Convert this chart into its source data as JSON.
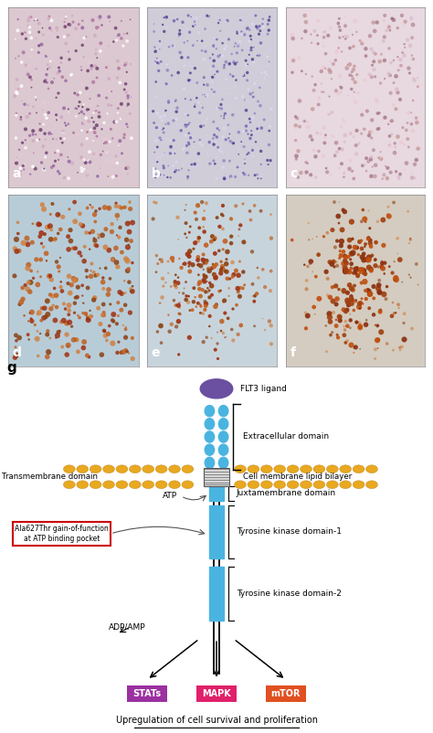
{
  "panel_labels": [
    "a",
    "b",
    "c",
    "d",
    "e",
    "f",
    "g"
  ],
  "fig_width": 4.74,
  "fig_height": 8.02,
  "bg_color": "#ffffff",
  "flt3_ligand_color": "#6b4fa0",
  "receptor_body_color": "#4ab4e0",
  "membrane_bead_color": "#e8a820",
  "stats_color": "#9b30a0",
  "mapk_color": "#e0206a",
  "mtor_color": "#e05020",
  "box_outline_color": "#cc0000",
  "label_g": "g",
  "flt3_ligand_text": "FLT3 ligand",
  "extracellular_text": "Extracellular domain",
  "transmembrane_text": "Transmembrane domain",
  "cell_membrane_text": "Cell membrane lipid bilayer",
  "atp_text": "ATP",
  "juxtamembrane_text": "Juxtamembrane domain",
  "tk1_text": "Tyrosine kinase domain-1",
  "tk2_text": "Tyrosine kinase domain-2",
  "adpamp_text": "ADP/AMP",
  "mutation_text": "Ala627Thr gain-of-function\nat ATP binding pocket",
  "stats_text": "STATs",
  "mapk_text": "MAPK",
  "mtor_text": "mTOR",
  "bottom_text": "Upregulation of cell survival and proliferation"
}
